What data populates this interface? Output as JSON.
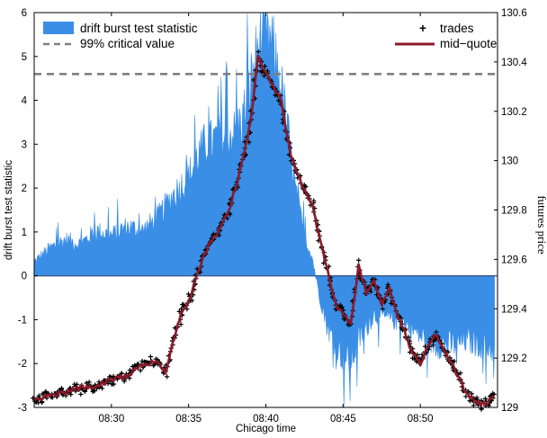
{
  "chart_data": {
    "type": "area",
    "xlabel": "Chicago time",
    "ylabel_left": "drift burst test statistic",
    "ylabel_right": "futures price",
    "x_range": [
      "08:25",
      "08:55"
    ],
    "xticks": [
      "08:30",
      "08:35",
      "08:40",
      "08:45",
      "08:50"
    ],
    "ylim_left": [
      -3,
      6
    ],
    "yticks_left": [
      -3,
      -2,
      -1,
      0,
      1,
      2,
      3,
      4,
      5,
      6
    ],
    "ylim_right": [
      129.0,
      130.6
    ],
    "yticks_right": [
      "129",
      "129.2",
      "129.4",
      "129.6",
      "129.8",
      "130",
      "130.2",
      "130.4",
      "130.6"
    ],
    "grid": false,
    "legend_left": [
      "drift burst test statistic",
      "99% critical value"
    ],
    "legend_right": [
      "trades",
      "mid−quote"
    ],
    "critical_value": 4.6,
    "colors": {
      "statistic": "#3a8ee6",
      "critical": "#808080",
      "trades": "#000000",
      "midquote": "#8b1a2b"
    },
    "series": [
      {
        "name": "drift burst test statistic",
        "axis": "left",
        "x": [
          "08:25:00",
          "08:26:00",
          "08:27:00",
          "08:28:00",
          "08:29:00",
          "08:30:00",
          "08:31:00",
          "08:32:00",
          "08:33:00",
          "08:34:00",
          "08:35:00",
          "08:35:30",
          "08:36:00",
          "08:37:00",
          "08:38:00",
          "08:38:30",
          "08:39:00",
          "08:39:30",
          "08:40:00",
          "08:40:30",
          "08:41:00",
          "08:41:30",
          "08:42:00",
          "08:42:30",
          "08:43:00",
          "08:43:30",
          "08:44:00",
          "08:45:00",
          "08:45:30",
          "08:46:00",
          "08:47:00",
          "08:48:00",
          "08:49:00",
          "08:50:00",
          "08:51:00",
          "08:52:00",
          "08:53:00",
          "08:54:00",
          "08:54:50"
        ],
        "y": [
          0.3,
          0.6,
          0.8,
          0.7,
          1.0,
          0.9,
          1.1,
          1.0,
          1.3,
          1.8,
          2.2,
          2.6,
          2.9,
          3.1,
          3.2,
          3.5,
          4.3,
          5.1,
          5.5,
          5.0,
          4.2,
          3.0,
          1.7,
          0.9,
          0.4,
          -0.5,
          -1.2,
          -1.9,
          -2.0,
          -1.5,
          -0.9,
          -1.0,
          -1.1,
          -1.4,
          -1.6,
          -1.6,
          -1.5,
          -1.6,
          -1.7
        ]
      },
      {
        "name": "mid−quote",
        "axis": "right",
        "x": [
          "08:25:00",
          "08:26:00",
          "08:27:00",
          "08:28:00",
          "08:29:00",
          "08:30:00",
          "08:31:00",
          "08:32:00",
          "08:33:00",
          "08:33:30",
          "08:34:00",
          "08:34:30",
          "08:35:00",
          "08:35:30",
          "08:36:00",
          "08:36:30",
          "08:37:00",
          "08:37:30",
          "08:38:00",
          "08:38:30",
          "08:39:00",
          "08:39:30",
          "08:40:00",
          "08:40:30",
          "08:41:00",
          "08:41:30",
          "08:42:00",
          "08:42:30",
          "08:43:00",
          "08:43:30",
          "08:44:00",
          "08:44:30",
          "08:45:00",
          "08:45:30",
          "08:46:00",
          "08:46:30",
          "08:47:00",
          "08:47:30",
          "08:48:00",
          "08:48:30",
          "08:49:00",
          "08:49:30",
          "08:50:00",
          "08:50:30",
          "08:51:00",
          "08:51:30",
          "08:52:00",
          "08:52:30",
          "08:53:00",
          "08:53:30",
          "08:54:00",
          "08:54:50"
        ],
        "y": [
          129.03,
          129.05,
          129.06,
          129.08,
          129.09,
          129.11,
          129.13,
          129.17,
          129.19,
          129.14,
          129.27,
          129.38,
          129.43,
          129.53,
          129.62,
          129.68,
          129.72,
          129.78,
          129.88,
          130.0,
          130.15,
          130.42,
          130.35,
          130.3,
          130.25,
          130.05,
          129.95,
          129.88,
          129.82,
          129.68,
          129.55,
          129.42,
          129.38,
          129.33,
          129.58,
          129.46,
          129.52,
          129.42,
          129.48,
          129.38,
          129.3,
          129.22,
          129.18,
          129.25,
          129.3,
          129.24,
          129.18,
          129.12,
          129.06,
          129.03,
          129.01,
          129.04
        ]
      }
    ]
  }
}
